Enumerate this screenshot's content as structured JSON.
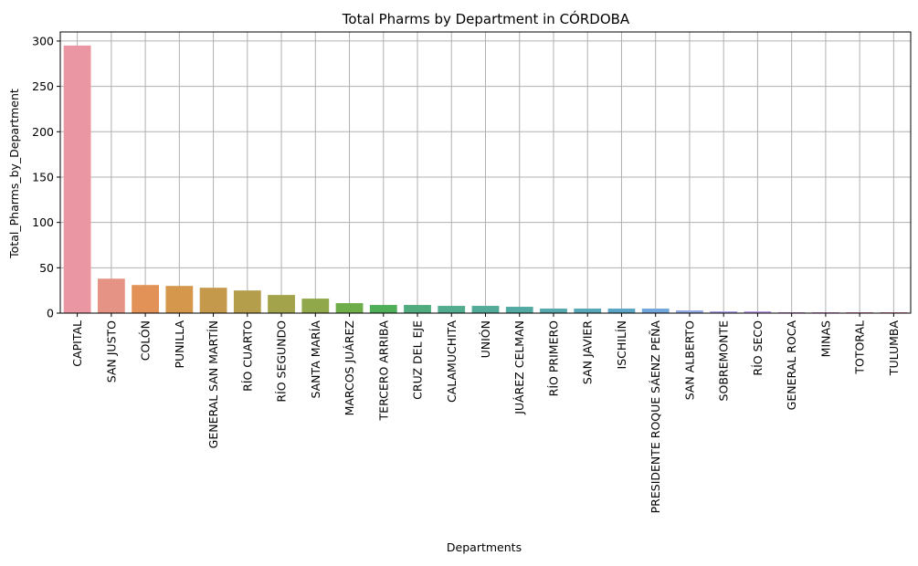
{
  "chart_data": {
    "type": "bar",
    "title": "Total Pharms by Department in CÓRDOBA",
    "xlabel": "Departments",
    "ylabel": "Total_Pharms_by_Department",
    "ylim": [
      0,
      310
    ],
    "yticks": [
      0,
      50,
      100,
      150,
      200,
      250,
      300
    ],
    "grid": true,
    "categories": [
      "CAPITAL",
      "SAN JUSTO",
      "COLÓN",
      "PUNILLA",
      "GENERAL SAN MARTÍN",
      "RÍO CUARTO",
      "RÍO SEGUNDO",
      "SANTA MARÍA",
      "MARCOS JUÁREZ",
      "TERCERO ARRIBA",
      "CRUZ DEL EJE",
      "CALAMUCHITA",
      "UNIÓN",
      "JUÁREZ CELMAN",
      "RÍO PRIMERO",
      "SAN JAVIER",
      "ISCHILÍN",
      "PRESIDENTE ROQUE SÁENZ PEÑA",
      "SAN ALBERTO",
      "SOBREMONTE",
      "RÍO SECO",
      "GENERAL ROCA",
      "MINAS",
      "TOTORAL",
      "TULUMBA"
    ],
    "values": [
      295,
      38,
      31,
      30,
      28,
      25,
      20,
      16,
      11,
      9,
      9,
      8,
      8,
      7,
      5,
      5,
      5,
      5,
      3,
      2,
      2,
      1,
      1,
      1,
      1
    ],
    "colors": [
      "#ea96a3",
      "#e59384",
      "#e29256",
      "#d4974b",
      "#c4994c",
      "#b49e4c",
      "#a3a34b",
      "#90a84a",
      "#6fad4b",
      "#4fae58",
      "#50ac7e",
      "#51ab8e",
      "#52aa99",
      "#53aaa3",
      "#55a8ab",
      "#58a7b6",
      "#5ba5c4",
      "#72a7dc",
      "#95a9e4",
      "#ad9fe6",
      "#c19be6",
      "#d295e6",
      "#e08fdb",
      "#e48fc6",
      "#e890b4"
    ]
  }
}
